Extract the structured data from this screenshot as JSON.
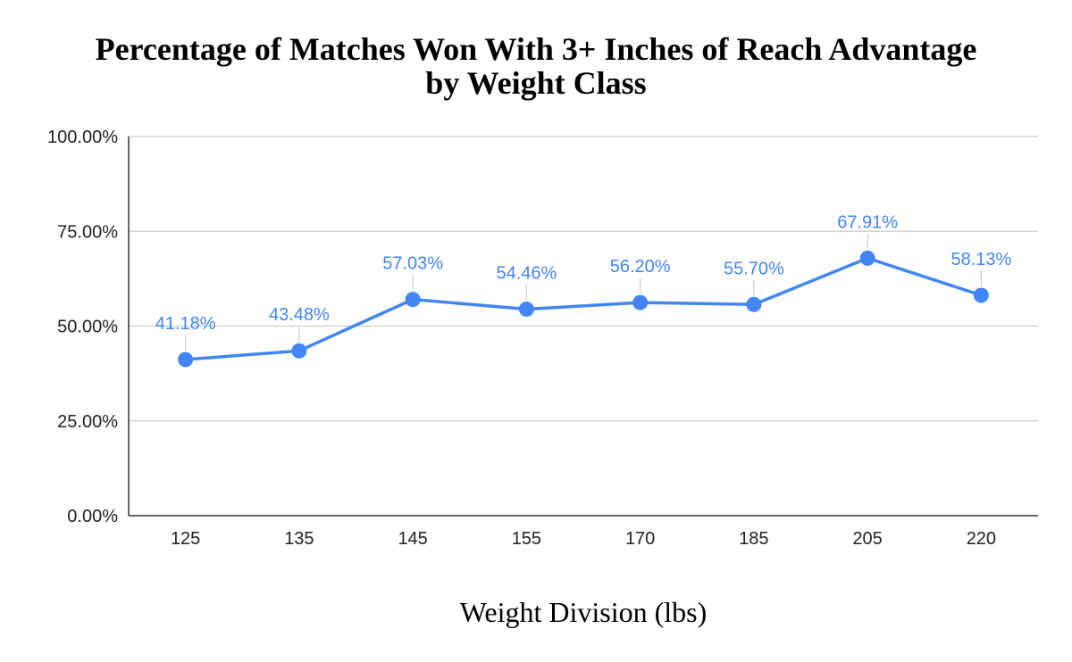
{
  "chart_data": {
    "type": "line",
    "title_lines": [
      "Percentage of Matches Won With 3+ Inches of Reach Advantage",
      "by Weight Class"
    ],
    "xlabel": "Weight Division (lbs)",
    "ylabel": "",
    "categories": [
      "125",
      "135",
      "145",
      "155",
      "170",
      "185",
      "205",
      "220"
    ],
    "values": [
      41.18,
      43.48,
      57.03,
      54.46,
      56.2,
      55.7,
      67.91,
      58.13
    ],
    "data_labels": [
      "41.18%",
      "43.48%",
      "57.03%",
      "54.46%",
      "56.20%",
      "55.70%",
      "67.91%",
      "58.13%"
    ],
    "ylim": [
      0,
      100
    ],
    "y_ticks": [
      0,
      25,
      50,
      75,
      100
    ],
    "y_tick_labels": [
      "0.00%",
      "25.00%",
      "50.00%",
      "75.00%",
      "100.00%"
    ],
    "grid": true,
    "legend": "none",
    "colors": {
      "series": "#4285F4",
      "data_label": "#4285F4",
      "grid": "#CCCCCC",
      "axis": "#333333",
      "leader": "#CCCCCC"
    }
  }
}
